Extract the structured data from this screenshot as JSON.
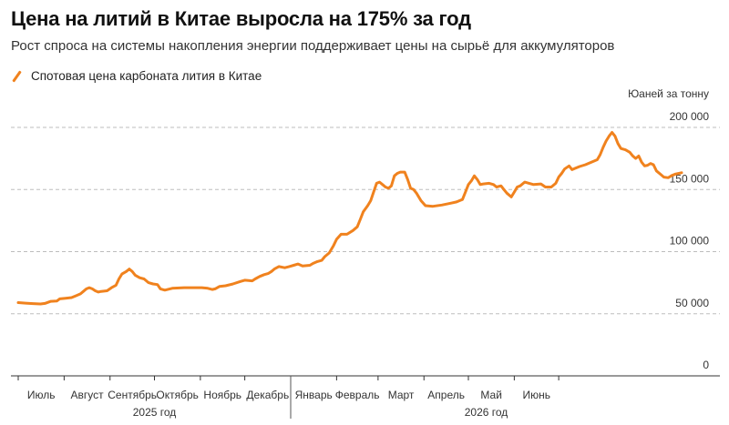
{
  "title": "Цена на литий в Китае выросла на 175% за год",
  "subtitle": "Рост спроса на системы накопления энергии поддерживает цены на сырьё для аккумуляторов",
  "chart_data": {
    "type": "line",
    "title": "Цена на литий в Китае выросла на 175% за год",
    "subtitle": "Рост спроса на системы накопления энергии поддерживает цены на сырьё для аккумуляторов",
    "unit_label": "Юаней за тонну",
    "ylim": [
      0,
      200000
    ],
    "y_ticks": [
      0,
      50000,
      100000,
      150000,
      200000
    ],
    "y_tick_labels": [
      "0",
      "50 000",
      "100 000",
      "150 000",
      "200 000"
    ],
    "grid": "horizontal dashed",
    "legend_position": "top-left",
    "months": [
      "Июль",
      "Август",
      "Сентябрь",
      "Октябрь",
      "Ноябрь",
      "Декабрь",
      "Январь",
      "Февраль",
      "Март",
      "Апрель",
      "Май",
      "Июнь"
    ],
    "years": [
      "2025 год",
      "2026 год"
    ],
    "series": [
      {
        "name": "Спотовая цена карбоната лития в Китае",
        "color": "#f0821e",
        "x_unit": "days since 2025-07-01",
        "points": [
          [
            0,
            59000
          ],
          [
            5,
            58500
          ],
          [
            10,
            58200
          ],
          [
            15,
            57900
          ],
          [
            18,
            58300
          ],
          [
            22,
            60000
          ],
          [
            26,
            60200
          ],
          [
            28,
            62000
          ],
          [
            32,
            62500
          ],
          [
            36,
            63000
          ],
          [
            39,
            64500
          ],
          [
            42,
            66000
          ],
          [
            44,
            68000
          ],
          [
            46,
            70000
          ],
          [
            48,
            71000
          ],
          [
            50,
            70000
          ],
          [
            52,
            68500
          ],
          [
            54,
            67500
          ],
          [
            56,
            68000
          ],
          [
            60,
            68500
          ],
          [
            63,
            71000
          ],
          [
            66,
            73000
          ],
          [
            68,
            78000
          ],
          [
            70,
            82000
          ],
          [
            73,
            84000
          ],
          [
            75,
            86000
          ],
          [
            77,
            84000
          ],
          [
            79,
            81000
          ],
          [
            82,
            79000
          ],
          [
            85,
            78000
          ],
          [
            88,
            75000
          ],
          [
            91,
            74000
          ],
          [
            94,
            73500
          ],
          [
            96,
            70000
          ],
          [
            99,
            69000
          ],
          [
            104,
            70500
          ],
          [
            112,
            71000
          ],
          [
            124,
            71000
          ],
          [
            128,
            70500
          ],
          [
            131,
            69500
          ],
          [
            133,
            70000
          ],
          [
            136,
            72000
          ],
          [
            140,
            72500
          ],
          [
            145,
            74000
          ],
          [
            150,
            76000
          ],
          [
            153,
            77000
          ],
          [
            158,
            76500
          ],
          [
            160,
            78000
          ],
          [
            163,
            80000
          ],
          [
            166,
            81500
          ],
          [
            169,
            82500
          ],
          [
            171,
            84000
          ],
          [
            173,
            86000
          ],
          [
            176,
            88000
          ],
          [
            180,
            87000
          ],
          [
            183,
            88000
          ],
          [
            186,
            89000
          ],
          [
            189,
            90000
          ],
          [
            192,
            88500
          ],
          [
            197,
            89000
          ],
          [
            199,
            90500
          ],
          [
            202,
            92000
          ],
          [
            205,
            93000
          ],
          [
            207,
            96000
          ],
          [
            210,
            99000
          ],
          [
            213,
            105000
          ],
          [
            215,
            110000
          ],
          [
            218,
            114000
          ],
          [
            222,
            114000
          ],
          [
            226,
            117000
          ],
          [
            229,
            120000
          ],
          [
            231,
            126000
          ],
          [
            233,
            132000
          ],
          [
            236,
            137000
          ],
          [
            238,
            141000
          ],
          [
            240,
            148000
          ],
          [
            242,
            155000
          ],
          [
            244,
            156000
          ],
          [
            246,
            154000
          ],
          [
            248,
            152000
          ],
          [
            250,
            151000
          ],
          [
            252,
            153000
          ],
          [
            254,
            161000
          ],
          [
            256,
            163000
          ],
          [
            258,
            164000
          ],
          [
            261,
            164000
          ],
          [
            263,
            158000
          ],
          [
            265,
            151000
          ],
          [
            267,
            150000
          ],
          [
            269,
            147000
          ],
          [
            272,
            141000
          ],
          [
            275,
            137000
          ],
          [
            280,
            136500
          ],
          [
            286,
            137500
          ],
          [
            292,
            139000
          ],
          [
            296,
            140000
          ],
          [
            298,
            141000
          ],
          [
            300,
            142000
          ],
          [
            302,
            148000
          ],
          [
            304,
            154000
          ],
          [
            306,
            157000
          ],
          [
            308,
            161000
          ],
          [
            310,
            158000
          ],
          [
            312,
            154000
          ],
          [
            314,
            154500
          ],
          [
            318,
            155000
          ],
          [
            321,
            154000
          ],
          [
            323,
            152000
          ],
          [
            326,
            153000
          ],
          [
            328,
            150000
          ],
          [
            330,
            147000
          ],
          [
            333,
            144000
          ],
          [
            335,
            148000
          ],
          [
            337,
            152000
          ],
          [
            339,
            153000
          ],
          [
            342,
            156000
          ],
          [
            345,
            155000
          ],
          [
            348,
            154000
          ],
          [
            353,
            154500
          ],
          [
            356,
            152000
          ],
          [
            360,
            152000
          ],
          [
            363,
            155000
          ],
          [
            365,
            160000
          ],
          [
            367,
            163000
          ],
          [
            369,
            166500
          ],
          [
            372,
            169000
          ],
          [
            374,
            166000
          ],
          [
            376,
            167000
          ],
          [
            379,
            168500
          ],
          [
            383,
            170000
          ],
          [
            387,
            172000
          ],
          [
            391,
            174000
          ],
          [
            393,
            178000
          ],
          [
            395,
            184000
          ],
          [
            397,
            189000
          ],
          [
            399,
            193000
          ],
          [
            401,
            196000
          ],
          [
            403,
            193000
          ],
          [
            405,
            187000
          ],
          [
            407,
            183000
          ],
          [
            410,
            182000
          ],
          [
            413,
            180000
          ],
          [
            415,
            177000
          ],
          [
            417,
            175000
          ],
          [
            419,
            177000
          ],
          [
            421,
            172000
          ],
          [
            423,
            169000
          ],
          [
            425,
            169500
          ],
          [
            427,
            171000
          ],
          [
            429,
            170000
          ],
          [
            431,
            165000
          ],
          [
            434,
            162000
          ],
          [
            436,
            160000
          ],
          [
            439,
            159500
          ],
          [
            441,
            161000
          ],
          [
            444,
            162500
          ],
          [
            448,
            163500
          ]
        ]
      }
    ]
  }
}
